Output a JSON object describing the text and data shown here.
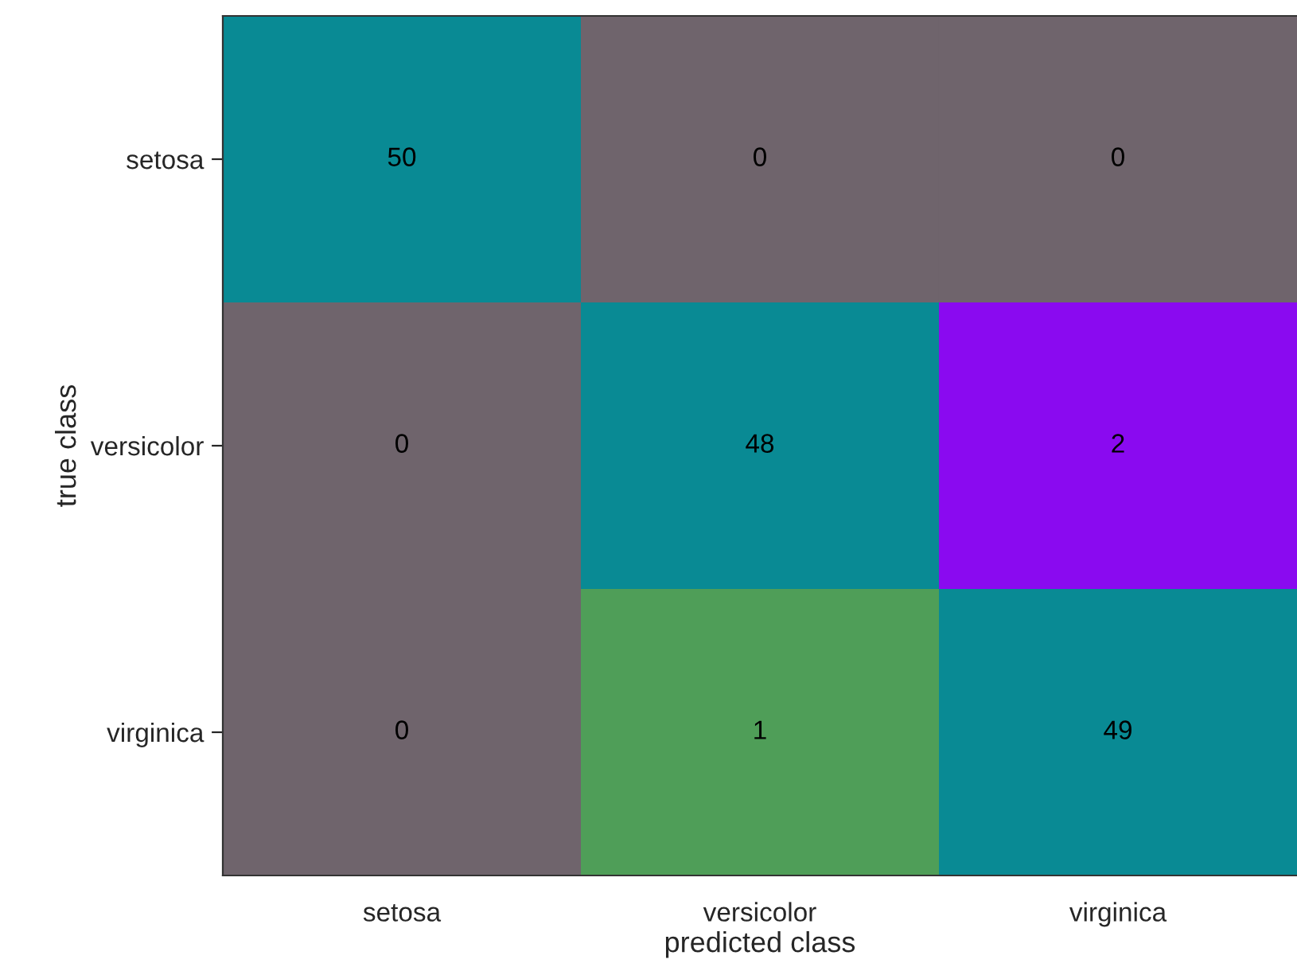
{
  "chart_data": {
    "type": "heatmap",
    "xlabel": "predicted class",
    "ylabel": "true class",
    "categories": [
      "setosa",
      "versicolor",
      "virginica"
    ],
    "y_categories": [
      "setosa",
      "versicolor",
      "virginica"
    ],
    "cells": [
      [
        50,
        0,
        0
      ],
      [
        0,
        48,
        2
      ],
      [
        0,
        1,
        49
      ]
    ],
    "colors": [
      [
        "#098a94",
        "#6f646c",
        "#6f646c"
      ],
      [
        "#6f646c",
        "#098a94",
        "#8a0af0"
      ],
      [
        "#6f646c",
        "#4f9e58",
        "#098a94"
      ]
    ],
    "data_labels": true
  }
}
